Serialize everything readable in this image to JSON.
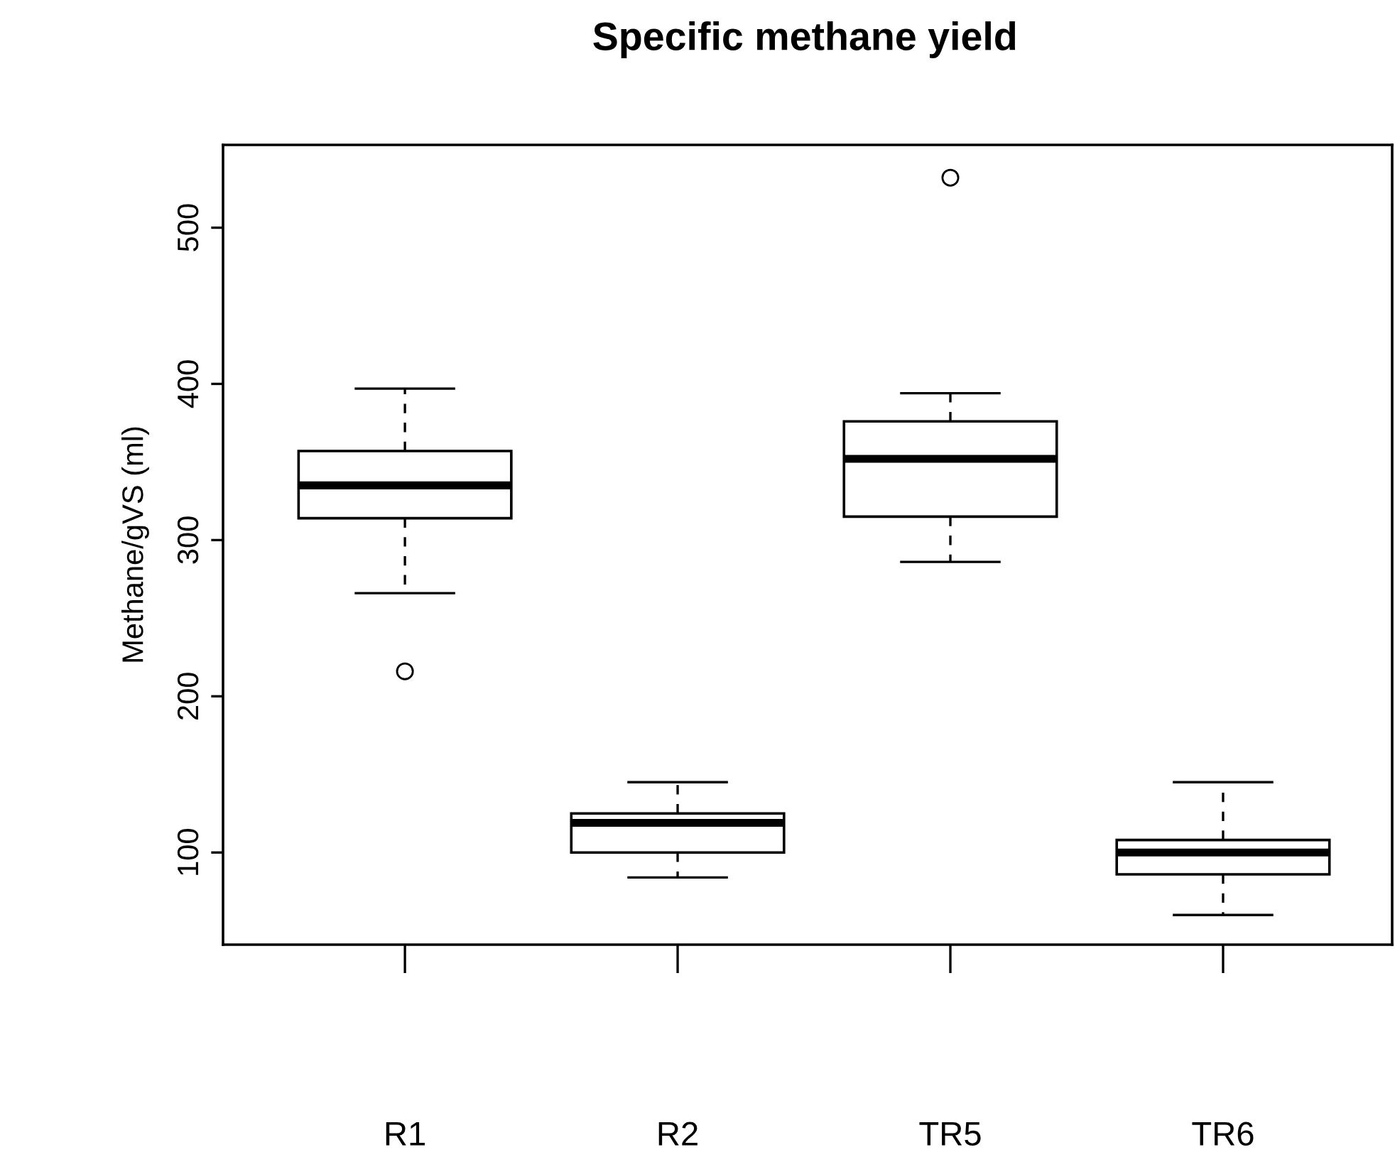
{
  "chart_data": {
    "type": "box",
    "title": "Specific methane yield",
    "ylabel": "Methane/gVS (ml)",
    "categories": [
      "R1",
      "R2",
      "TR5",
      "TR6"
    ],
    "boxes": [
      {
        "low": 266,
        "q1": 314,
        "median": 335,
        "q3": 357,
        "high": 397,
        "outliers": [
          216
        ]
      },
      {
        "low": 84,
        "q1": 100,
        "median": 119,
        "q3": 125,
        "high": 145
      },
      {
        "low": 286,
        "q1": 315,
        "median": 352,
        "q3": 376,
        "high": 394,
        "outliers": [
          532
        ]
      },
      {
        "low": 60,
        "q1": 86,
        "median": 100,
        "q3": 108,
        "high": 145
      }
    ],
    "color": "#ffffff",
    "ylim": [
      41,
      553
    ],
    "yticks": [
      100,
      200,
      300,
      400,
      500
    ],
    "grid": false
  }
}
